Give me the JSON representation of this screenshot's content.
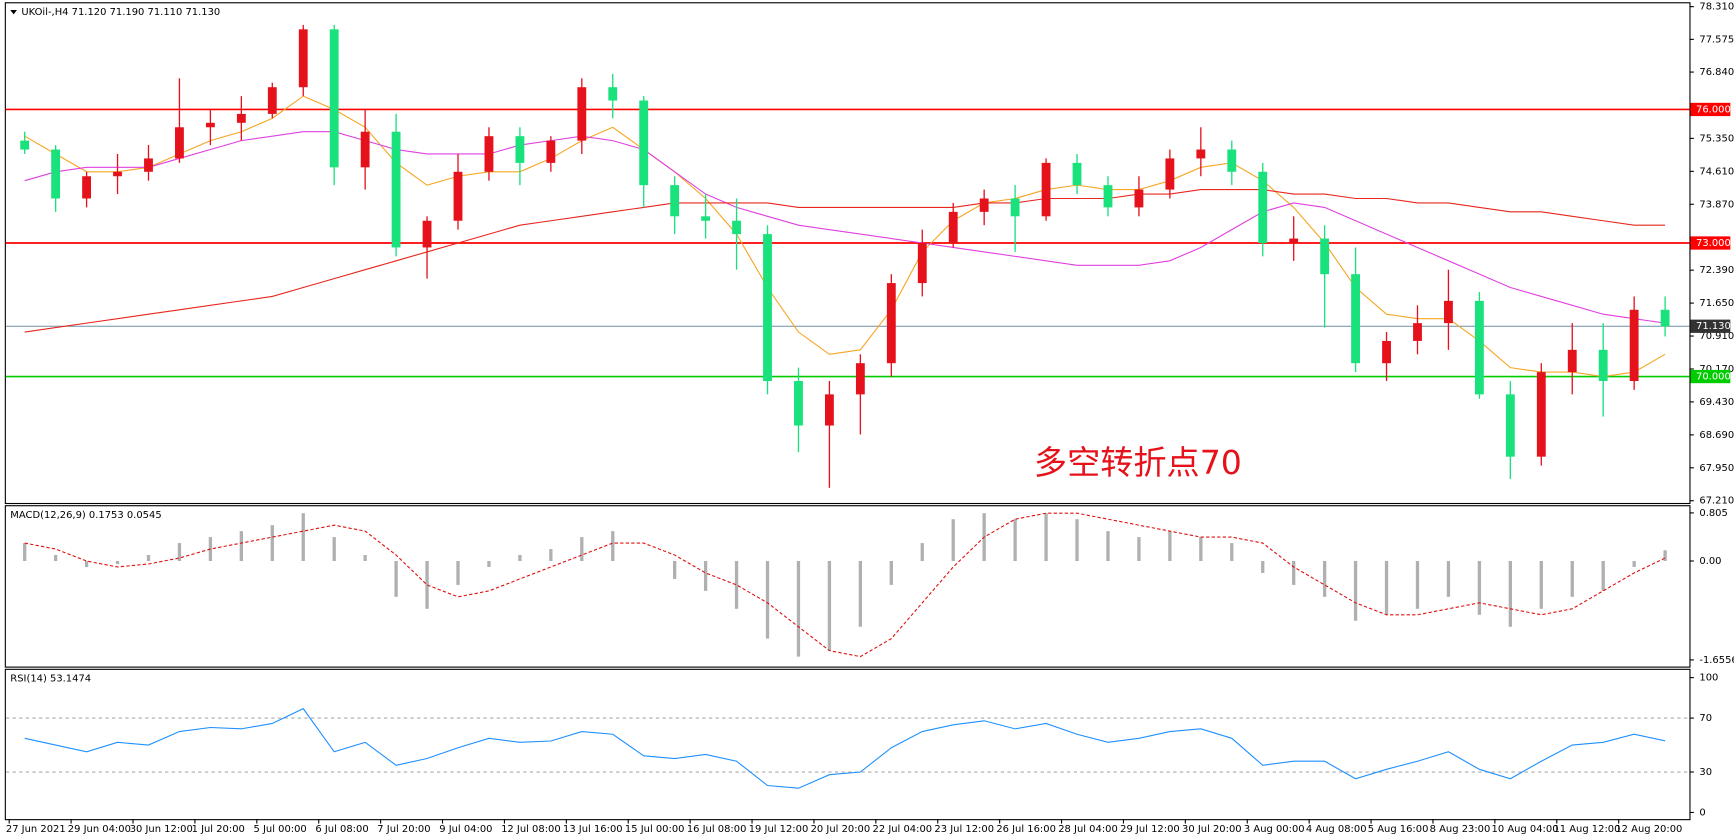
{
  "chart_data": [
    {
      "type": "candlestick",
      "title": "UKOil-,H4 71.120 71.190 71.110 71.130",
      "annotation": "多空转折点70",
      "categories": [
        "27 Jun 2021",
        null,
        "29 Jun 04:00",
        null,
        "30 Jun 12:00",
        null,
        "1 Jul 20:00",
        null,
        "5 Jul 00:00",
        null,
        "6 Jul 08:00",
        null,
        "7 Jul 20:00",
        null,
        "9 Jul 04:00",
        null,
        "12 Jul 08:00",
        null,
        "13 Jul 16:00",
        null,
        "15 Jul 00:00",
        null,
        "16 Jul 08:00",
        null,
        "19 Jul 12:00",
        null,
        "20 Jul 20:00",
        null,
        "22 Jul 04:00",
        null,
        "23 Jul 12:00",
        null,
        "26 Jul 16:00",
        null,
        "28 Jul 04:00",
        null,
        "29 Jul 12:00",
        null,
        "30 Jul 20:00",
        null,
        "3 Aug 00:00",
        null,
        "4 Aug 08:00",
        null,
        "5 Aug 16:00",
        null,
        "8 Aug 23:00",
        null,
        "10 Aug 04:00",
        null,
        "11 Aug 12:00",
        null,
        "12 Aug 20:00",
        null
      ],
      "open": [
        75.3,
        75.1,
        74.0,
        74.5,
        74.6,
        74.9,
        75.6,
        75.7,
        75.9,
        76.5,
        77.8,
        74.7,
        75.5,
        72.9,
        73.5,
        74.6,
        75.4,
        74.8,
        75.3,
        76.5,
        76.2,
        74.3,
        73.6,
        73.5,
        73.2,
        69.9,
        68.9,
        69.6,
        70.3,
        72.1,
        73.0,
        73.7,
        74.0,
        73.6,
        74.8,
        74.3,
        73.8,
        74.2,
        74.9,
        75.1,
        74.6,
        73.0,
        73.1,
        72.3,
        70.3,
        70.8,
        71.2,
        71.7,
        69.6,
        68.2,
        70.1,
        70.6,
        69.9,
        71.5
      ],
      "high": [
        75.5,
        75.2,
        74.6,
        75.0,
        75.2,
        76.7,
        76.0,
        76.3,
        76.6,
        77.9,
        77.9,
        76.0,
        75.9,
        73.6,
        75.0,
        75.6,
        75.6,
        75.4,
        76.7,
        76.8,
        76.3,
        74.5,
        74.1,
        74.0,
        73.4,
        70.2,
        69.9,
        70.5,
        72.3,
        73.3,
        73.9,
        74.2,
        74.3,
        74.9,
        75.0,
        74.5,
        74.5,
        75.1,
        75.6,
        75.3,
        74.8,
        73.6,
        73.4,
        72.9,
        71.0,
        71.6,
        72.4,
        71.9,
        69.9,
        70.3,
        71.2,
        71.2,
        71.8,
        71.8
      ],
      "low": [
        75.0,
        73.7,
        73.8,
        74.1,
        74.4,
        74.8,
        75.2,
        75.3,
        75.8,
        76.3,
        74.3,
        74.2,
        72.7,
        72.2,
        73.3,
        74.4,
        74.3,
        74.6,
        75.0,
        75.8,
        73.8,
        73.2,
        73.1,
        72.4,
        69.6,
        68.3,
        67.5,
        68.7,
        70.0,
        71.8,
        72.9,
        73.4,
        72.8,
        73.5,
        74.1,
        73.6,
        73.6,
        74.0,
        74.5,
        74.3,
        72.7,
        72.6,
        71.1,
        70.1,
        69.9,
        70.5,
        70.6,
        69.5,
        67.7,
        68.0,
        69.6,
        69.1,
        69.7,
        70.9
      ],
      "close": [
        75.1,
        74.0,
        74.5,
        74.6,
        74.9,
        75.6,
        75.7,
        75.9,
        76.5,
        77.8,
        74.7,
        75.5,
        72.9,
        73.5,
        74.6,
        75.4,
        74.8,
        75.3,
        76.5,
        76.2,
        74.3,
        73.6,
        73.5,
        73.2,
        69.9,
        68.9,
        69.6,
        70.3,
        72.1,
        73.0,
        73.7,
        74.0,
        73.6,
        74.8,
        74.3,
        73.8,
        74.2,
        74.9,
        75.1,
        74.6,
        73.0,
        73.1,
        72.3,
        70.3,
        70.8,
        71.2,
        71.7,
        69.6,
        68.2,
        70.1,
        70.6,
        69.9,
        71.5,
        71.13
      ],
      "up_color": "#e5121c",
      "down_color": "#19e27c",
      "moving_averages": [
        {
          "color": "#f5a623",
          "values": [
            75.4,
            75.0,
            74.6,
            74.6,
            74.7,
            75.0,
            75.3,
            75.5,
            75.8,
            76.3,
            76.0,
            75.6,
            74.8,
            74.3,
            74.5,
            74.6,
            74.6,
            74.9,
            75.3,
            75.6,
            75.1,
            74.6,
            74.0,
            73.2,
            72.0,
            71.0,
            70.5,
            70.6,
            71.5,
            72.8,
            73.5,
            73.9,
            74.0,
            74.2,
            74.3,
            74.2,
            74.2,
            74.4,
            74.7,
            74.8,
            74.4,
            73.8,
            73.0,
            72.0,
            71.4,
            71.3,
            71.3,
            70.8,
            70.2,
            70.1,
            70.1,
            70.0,
            70.1,
            70.5
          ]
        },
        {
          "color": "#e040e0",
          "values": [
            74.4,
            74.6,
            74.7,
            74.7,
            74.7,
            74.9,
            75.1,
            75.3,
            75.4,
            75.5,
            75.5,
            75.3,
            75.1,
            75.0,
            75.0,
            75.0,
            75.2,
            75.3,
            75.4,
            75.3,
            75.1,
            74.6,
            74.1,
            73.8,
            73.6,
            73.4,
            73.3,
            73.2,
            73.1,
            73.0,
            72.9,
            72.8,
            72.7,
            72.6,
            72.5,
            72.5,
            72.5,
            72.6,
            72.9,
            73.3,
            73.7,
            73.9,
            73.8,
            73.5,
            73.2,
            72.9,
            72.6,
            72.3,
            72.0,
            71.8,
            71.6,
            71.4,
            71.3,
            71.2
          ]
        },
        {
          "color": "#e8261e",
          "values": [
            71.0,
            71.1,
            71.2,
            71.3,
            71.4,
            71.5,
            71.6,
            71.7,
            71.8,
            72.0,
            72.2,
            72.4,
            72.6,
            72.8,
            73.0,
            73.2,
            73.4,
            73.5,
            73.6,
            73.7,
            73.8,
            73.9,
            73.9,
            73.9,
            73.9,
            73.8,
            73.8,
            73.8,
            73.8,
            73.8,
            73.8,
            73.9,
            73.9,
            74.0,
            74.0,
            74.0,
            74.1,
            74.1,
            74.2,
            74.2,
            74.2,
            74.1,
            74.1,
            74.0,
            74.0,
            73.9,
            73.9,
            73.8,
            73.7,
            73.7,
            73.6,
            73.5,
            73.4,
            73.4
          ]
        }
      ],
      "levels": [
        {
          "value": 76,
          "label": "76.000",
          "color": "#ff0000"
        },
        {
          "value": 73,
          "label": "73.000",
          "color": "#ff0000"
        },
        {
          "value": 70,
          "label": "70.000",
          "color": "#00cc00"
        }
      ],
      "current": {
        "value": 71.13,
        "label": "71.130",
        "color": "#6f8fa8"
      },
      "ylim": [
        67.21,
        78.31
      ],
      "yticks": [
        {
          "value": 78.31,
          "label": "78.310"
        },
        {
          "value": 77.575,
          "label": "77.575"
        },
        {
          "value": 76.84,
          "label": "76.840"
        },
        {
          "value": 75.35,
          "label": "75.350"
        },
        {
          "value": 74.61,
          "label": "74.610"
        },
        {
          "value": 73.87,
          "label": "73.870"
        },
        {
          "value": 72.39,
          "label": "72.390"
        },
        {
          "value": 71.65,
          "label": "71.650"
        },
        {
          "value": 70.91,
          "label": "70.910"
        },
        {
          "value": 70.17,
          "label": "70.170"
        },
        {
          "value": 69.43,
          "label": "69.430"
        },
        {
          "value": 68.69,
          "label": "68.690"
        },
        {
          "value": 67.95,
          "label": "67.950"
        },
        {
          "value": 67.21,
          "label": "67.210"
        }
      ]
    },
    {
      "type": "macd",
      "title": "MACD(12,26,9) 0.1753 0.0545",
      "histogram": {
        "color": "#b0b0b0",
        "values": [
          0.3,
          0.1,
          -0.1,
          -0.05,
          0.1,
          0.3,
          0.4,
          0.5,
          0.6,
          0.8,
          0.4,
          0.1,
          -0.6,
          -0.8,
          -0.4,
          -0.1,
          0.1,
          0.2,
          0.4,
          0.5,
          0.0,
          -0.3,
          -0.5,
          -0.8,
          -1.3,
          -1.6,
          -1.5,
          -1.1,
          -0.4,
          0.3,
          0.7,
          0.8,
          0.7,
          0.8,
          0.7,
          0.5,
          0.4,
          0.5,
          0.4,
          0.3,
          -0.2,
          -0.4,
          -0.6,
          -1.0,
          -0.9,
          -0.8,
          -0.6,
          -0.9,
          -1.1,
          -0.8,
          -0.6,
          -0.5,
          -0.1,
          0.18
        ]
      },
      "signal": {
        "color": "#e01010",
        "values": [
          0.3,
          0.2,
          0.0,
          -0.1,
          -0.05,
          0.05,
          0.2,
          0.3,
          0.4,
          0.5,
          0.6,
          0.5,
          0.1,
          -0.4,
          -0.6,
          -0.5,
          -0.3,
          -0.1,
          0.1,
          0.3,
          0.3,
          0.1,
          -0.2,
          -0.4,
          -0.7,
          -1.1,
          -1.5,
          -1.6,
          -1.3,
          -0.7,
          -0.1,
          0.4,
          0.7,
          0.8,
          0.8,
          0.7,
          0.6,
          0.5,
          0.4,
          0.4,
          0.3,
          -0.1,
          -0.4,
          -0.7,
          -0.9,
          -0.9,
          -0.8,
          -0.7,
          -0.8,
          -0.9,
          -0.8,
          -0.5,
          -0.2,
          0.05
        ]
      },
      "ylim": [
        -1.6556,
        0.805
      ],
      "yticks": [
        0.805,
        {
          "value": 0,
          "label": "0.00"
        },
        -1.6556
      ]
    },
    {
      "type": "line",
      "title": "RSI(14) 53.1474",
      "color": "#1e90ff",
      "values": [
        55,
        50,
        45,
        52,
        50,
        60,
        63,
        62,
        66,
        77,
        45,
        52,
        35,
        40,
        48,
        55,
        52,
        53,
        60,
        58,
        42,
        40,
        43,
        38,
        20,
        18,
        28,
        30,
        48,
        60,
        65,
        68,
        62,
        66,
        58,
        52,
        55,
        60,
        62,
        55,
        35,
        38,
        38,
        25,
        32,
        38,
        45,
        32,
        25,
        38,
        50,
        52,
        58,
        53.1474
      ],
      "levels": [
        70,
        30
      ],
      "ylim": [
        0,
        100
      ],
      "yticks": [
        100,
        70,
        30,
        0
      ]
    }
  ]
}
